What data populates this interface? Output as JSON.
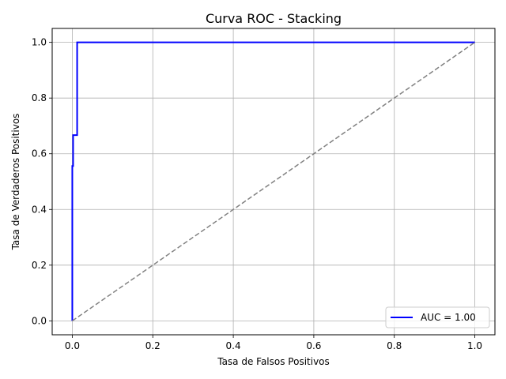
{
  "chart_data": {
    "type": "line",
    "title": "Curva ROC - Stacking",
    "xlabel": "Tasa de Falsos Positivos",
    "ylabel": "Tasa de Verdaderos Positivos",
    "xlim": [
      -0.05,
      1.05
    ],
    "ylim": [
      -0.05,
      1.05
    ],
    "xticks": [
      0.0,
      0.2,
      0.4,
      0.6,
      0.8,
      1.0
    ],
    "yticks": [
      0.0,
      0.2,
      0.4,
      0.6,
      0.8,
      1.0
    ],
    "xtick_labels": [
      "0.0",
      "0.2",
      "0.4",
      "0.6",
      "0.8",
      "1.0"
    ],
    "ytick_labels": [
      "0.0",
      "0.2",
      "0.4",
      "0.6",
      "0.8",
      "1.0"
    ],
    "grid": true,
    "legend_position": "lower-right",
    "series": [
      {
        "name": "AUC = 1.00",
        "color": "#0000ff",
        "style": "solid",
        "x": [
          0.0,
          0.0,
          0.002,
          0.002,
          0.006,
          0.006,
          0.012,
          0.012,
          1.0
        ],
        "y": [
          0.0,
          0.556,
          0.556,
          0.667,
          0.667,
          0.667,
          0.667,
          1.0,
          1.0
        ]
      },
      {
        "color": "#808080",
        "style": "dashed",
        "x": [
          0.0,
          1.0
        ],
        "y": [
          0.0,
          1.0
        ]
      }
    ]
  }
}
